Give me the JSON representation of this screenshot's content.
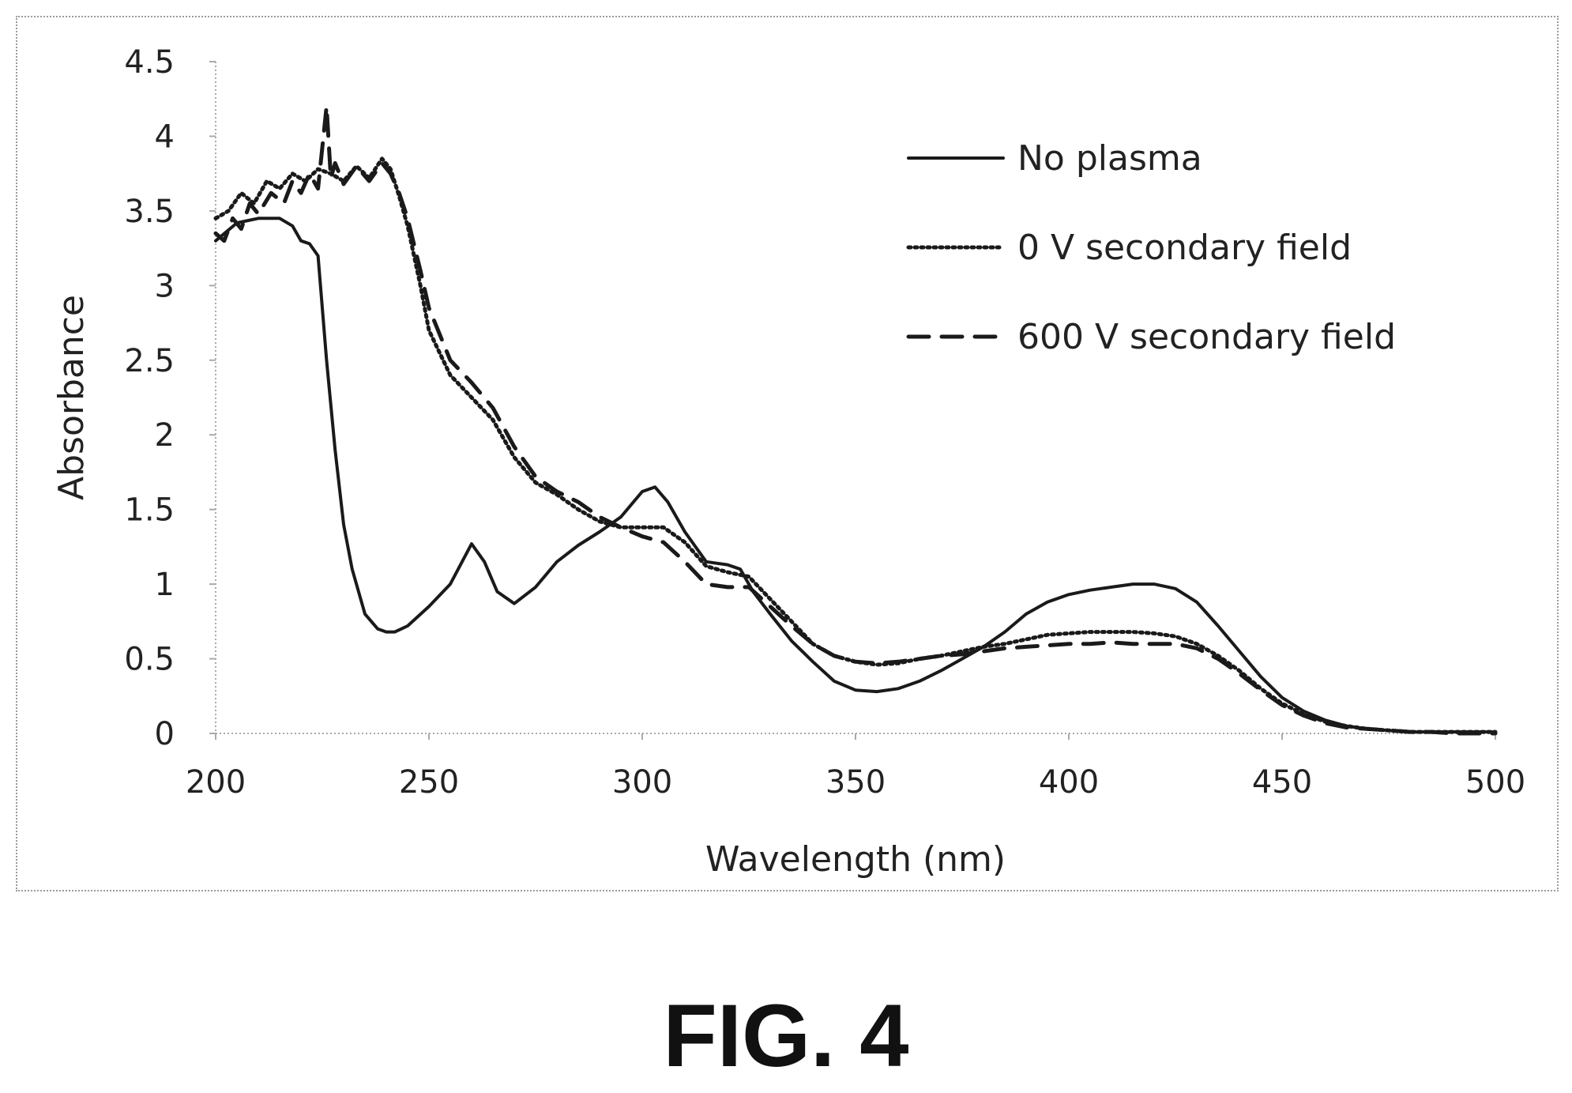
{
  "figure": {
    "caption": "FIG. 4"
  },
  "chart_data": {
    "type": "line",
    "title": "",
    "xlabel": "Wavelength (nm)",
    "ylabel": "Absorbance",
    "xlim": [
      200,
      500
    ],
    "ylim": [
      0,
      4.5
    ],
    "xticks": [
      200,
      250,
      300,
      350,
      400,
      450,
      500
    ],
    "yticks": [
      0,
      0.5,
      1,
      1.5,
      2,
      2.5,
      3,
      3.5,
      4,
      4.5
    ],
    "xtick_labels": [
      "200",
      "250",
      "300",
      "350",
      "400",
      "450",
      "500"
    ],
    "ytick_labels": [
      "0",
      "0.5",
      "1",
      "1.5",
      "2",
      "2.5",
      "3",
      "3.5",
      "4",
      "4.5"
    ],
    "grid": false,
    "legend_position": "top-right",
    "series": [
      {
        "name": "No plasma",
        "style": "solid",
        "color": "#1a1a1a",
        "x": [
          200,
          205,
          210,
          215,
          218,
          220,
          222,
          224,
          226,
          228,
          230,
          232,
          235,
          238,
          240,
          242,
          245,
          250,
          255,
          260,
          263,
          266,
          270,
          275,
          280,
          285,
          290,
          295,
          300,
          303,
          306,
          310,
          315,
          320,
          323,
          326,
          330,
          335,
          340,
          345,
          350,
          355,
          360,
          365,
          370,
          375,
          380,
          385,
          390,
          395,
          400,
          405,
          410,
          415,
          420,
          425,
          430,
          435,
          440,
          445,
          450,
          455,
          460,
          465,
          470,
          475,
          480,
          485,
          490,
          495,
          500
        ],
        "y": [
          3.3,
          3.42,
          3.45,
          3.45,
          3.4,
          3.3,
          3.28,
          3.2,
          2.5,
          1.9,
          1.4,
          1.1,
          0.8,
          0.7,
          0.68,
          0.68,
          0.72,
          0.85,
          1.0,
          1.27,
          1.15,
          0.95,
          0.87,
          0.98,
          1.15,
          1.26,
          1.35,
          1.45,
          1.62,
          1.65,
          1.55,
          1.35,
          1.15,
          1.13,
          1.1,
          0.95,
          0.8,
          0.62,
          0.48,
          0.35,
          0.29,
          0.28,
          0.3,
          0.35,
          0.42,
          0.5,
          0.58,
          0.68,
          0.8,
          0.88,
          0.93,
          0.96,
          0.98,
          1.0,
          1.0,
          0.97,
          0.88,
          0.72,
          0.55,
          0.38,
          0.24,
          0.15,
          0.09,
          0.05,
          0.03,
          0.02,
          0.01,
          0.01,
          0.01,
          0.01,
          0.01
        ]
      },
      {
        "name": "0 V secondary field",
        "style": "dotted",
        "color": "#1a1a1a",
        "x": [
          200,
          203,
          206,
          209,
          212,
          215,
          218,
          221,
          224,
          227,
          230,
          233,
          236,
          239,
          241,
          243,
          245,
          248,
          250,
          255,
          260,
          265,
          270,
          275,
          280,
          285,
          290,
          295,
          300,
          305,
          310,
          315,
          320,
          325,
          330,
          335,
          340,
          345,
          350,
          355,
          360,
          365,
          370,
          375,
          380,
          385,
          390,
          395,
          400,
          405,
          410,
          415,
          420,
          425,
          430,
          435,
          440,
          445,
          450,
          455,
          460,
          465,
          470,
          475,
          480,
          485,
          490,
          495,
          500
        ],
        "y": [
          3.45,
          3.5,
          3.62,
          3.55,
          3.7,
          3.65,
          3.75,
          3.7,
          3.78,
          3.75,
          3.7,
          3.8,
          3.72,
          3.85,
          3.78,
          3.6,
          3.4,
          3.0,
          2.7,
          2.4,
          2.25,
          2.1,
          1.85,
          1.68,
          1.6,
          1.5,
          1.42,
          1.38,
          1.38,
          1.38,
          1.28,
          1.12,
          1.08,
          1.05,
          0.9,
          0.75,
          0.6,
          0.52,
          0.48,
          0.46,
          0.47,
          0.5,
          0.52,
          0.55,
          0.58,
          0.6,
          0.63,
          0.66,
          0.67,
          0.68,
          0.68,
          0.68,
          0.67,
          0.65,
          0.6,
          0.52,
          0.42,
          0.3,
          0.2,
          0.13,
          0.08,
          0.05,
          0.03,
          0.02,
          0.01,
          0.01,
          0.01,
          0.01,
          0.01
        ]
      },
      {
        "name": "600 V secondary field",
        "style": "dashed",
        "color": "#1a1a1a",
        "x": [
          200,
          202,
          204,
          206,
          208,
          210,
          213,
          216,
          218,
          220,
          222,
          224,
          226,
          227,
          228,
          230,
          233,
          236,
          239,
          241,
          243,
          245,
          248,
          250,
          255,
          260,
          265,
          270,
          275,
          280,
          285,
          290,
          295,
          300,
          305,
          310,
          315,
          320,
          325,
          330,
          335,
          340,
          345,
          350,
          355,
          360,
          365,
          370,
          375,
          380,
          385,
          390,
          395,
          400,
          405,
          410,
          415,
          420,
          425,
          430,
          435,
          440,
          445,
          450,
          455,
          460,
          465,
          470,
          475,
          480,
          485,
          490,
          495,
          500
        ],
        "y": [
          3.35,
          3.3,
          3.45,
          3.38,
          3.55,
          3.48,
          3.62,
          3.55,
          3.7,
          3.62,
          3.75,
          3.65,
          4.2,
          3.72,
          3.82,
          3.68,
          3.8,
          3.7,
          3.82,
          3.75,
          3.62,
          3.45,
          3.1,
          2.85,
          2.5,
          2.35,
          2.18,
          1.92,
          1.72,
          1.62,
          1.55,
          1.45,
          1.38,
          1.32,
          1.28,
          1.15,
          1.0,
          0.98,
          0.98,
          0.85,
          0.72,
          0.6,
          0.52,
          0.48,
          0.47,
          0.48,
          0.5,
          0.52,
          0.53,
          0.55,
          0.57,
          0.58,
          0.59,
          0.6,
          0.6,
          0.61,
          0.6,
          0.6,
          0.6,
          0.57,
          0.5,
          0.4,
          0.29,
          0.19,
          0.12,
          0.07,
          0.04,
          0.03,
          0.02,
          0.01,
          0.01,
          0.0,
          0.0,
          0.0
        ]
      }
    ]
  }
}
